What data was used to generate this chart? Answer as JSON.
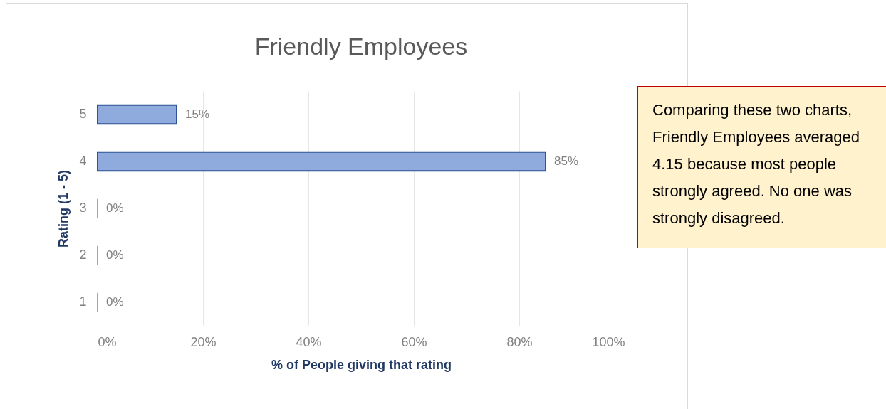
{
  "chart_data": {
    "type": "bar",
    "orientation": "horizontal",
    "title": "Friendly Employees",
    "xlabel": "% of People giving that rating",
    "ylabel": "Rating (1 - 5)",
    "categories": [
      "5",
      "4",
      "3",
      "2",
      "1"
    ],
    "values": [
      15,
      85,
      0,
      0,
      0
    ],
    "value_labels": [
      "15%",
      "85%",
      "0%",
      "0%",
      "0%"
    ],
    "color": "#8faadc",
    "xlim": [
      0,
      100
    ],
    "xticks": [
      {
        "value": 0,
        "label": "0%"
      },
      {
        "value": 20,
        "label": "20%"
      },
      {
        "value": 40,
        "label": "40%"
      },
      {
        "value": 60,
        "label": "60%"
      },
      {
        "value": 80,
        "label": "80%"
      },
      {
        "value": 100,
        "label": "100%"
      }
    ],
    "grid": "x",
    "annotations": [
      "Comparing these two charts, Friendly Employees averaged 4.15 because most people strongly agreed. No one was strongly disagreed."
    ]
  }
}
